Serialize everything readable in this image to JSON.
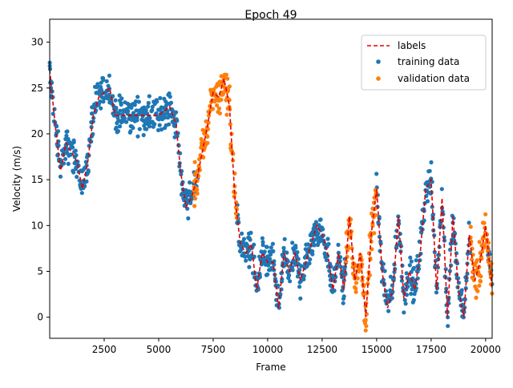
{
  "chart_data": {
    "type": "scatter",
    "title": "Epoch 49",
    "xlabel": "Frame",
    "ylabel": "Velocity (m/s)",
    "xlim": [
      0,
      20300
    ],
    "ylim": [
      -2.3,
      32.5
    ],
    "xticks": [
      2500,
      5000,
      7500,
      10000,
      12500,
      15000,
      17500,
      20000
    ],
    "yticks": [
      0,
      5,
      10,
      15,
      20,
      25,
      30
    ],
    "legend_position": "top-right",
    "colors": {
      "labels": "#e00000",
      "training": "#1f77b4",
      "validation": "#ff7f0e"
    },
    "series": [
      {
        "name": "labels",
        "style": "dashed-line",
        "x": [
          0,
          250,
          500,
          750,
          1000,
          1250,
          1500,
          1750,
          2000,
          2250,
          2500,
          2750,
          3000,
          3500,
          4000,
          4500,
          5000,
          5500,
          5800,
          6000,
          6250,
          6500,
          6750,
          7000,
          7250,
          7500,
          7750,
          8000,
          8250,
          8500,
          8750,
          9000,
          9250,
          9500,
          9750,
          10000,
          10250,
          10500,
          10750,
          11000,
          11250,
          11500,
          11750,
          12000,
          12250,
          12500,
          12750,
          13000,
          13250,
          13500,
          13750,
          14000,
          14250,
          14500,
          14750,
          15000,
          15250,
          15500,
          15750,
          16000,
          16250,
          16500,
          16750,
          17000,
          17250,
          17500,
          17750,
          18000,
          18250,
          18500,
          18750,
          19000,
          19250,
          19500,
          19750,
          20000,
          20300
        ],
        "y": [
          27,
          21,
          16,
          19,
          18,
          17,
          14,
          17,
          22,
          24,
          24.5,
          25,
          22,
          22,
          22,
          22,
          22,
          23,
          21,
          16,
          12,
          13,
          15,
          18,
          21,
          24.5,
          24,
          26,
          23,
          13,
          8,
          7,
          8,
          3,
          7,
          6,
          6,
          1,
          7,
          5,
          7,
          4,
          6,
          8,
          10,
          9,
          7,
          3,
          7,
          3,
          11,
          4,
          7,
          0,
          9,
          14,
          5,
          1,
          3,
          11,
          2,
          5,
          3,
          7,
          14,
          15,
          3,
          13,
          0,
          11,
          3,
          0,
          9,
          4,
          6,
          10,
          3
        ]
      },
      {
        "name": "training data",
        "style": "dots",
        "segments": [
          [
            0,
            6800
          ],
          [
            8600,
            13600
          ],
          [
            15000,
            19300
          ],
          [
            20100,
            20300
          ]
        ]
      },
      {
        "name": "validation data",
        "style": "dots",
        "segments": [
          [
            6600,
            8600
          ],
          [
            13600,
            15000
          ],
          [
            19300,
            20300
          ]
        ]
      }
    ]
  }
}
